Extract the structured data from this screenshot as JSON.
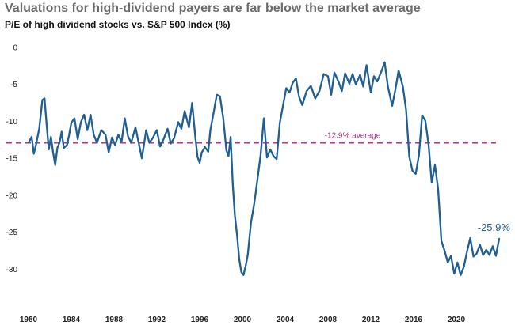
{
  "colors": {
    "line": "#1f5f93",
    "average": "#b03585",
    "last_label": "#1f5f93"
  },
  "chart_data": {
    "type": "line",
    "title": "Valuations for high-dividend payers are far below the market average",
    "subtitle": "P/E of high dividend stocks vs. S&P 500 Index (%)",
    "xlabel": "",
    "ylabel": "",
    "xlim": [
      1980,
      2024.3
    ],
    "ylim": [
      -33.5,
      0
    ],
    "grid": false,
    "legend": "none",
    "x_ticks": [
      1980,
      1984,
      1988,
      1992,
      1996,
      2000,
      2004,
      2008,
      2012,
      2016,
      2020
    ],
    "y_ticks": [
      0,
      -5,
      -10,
      -15,
      -20,
      -25,
      -30
    ],
    "average": {
      "value": -12.9,
      "label": "-12.9% average"
    },
    "last_value_label": "-25.9%",
    "series": [
      {
        "x": [
          1980.0,
          1980.3,
          1980.5,
          1980.7,
          1981.0,
          1981.3,
          1981.5,
          1981.7,
          1981.9,
          1982.1,
          1982.3,
          1982.5,
          1982.7,
          1982.9,
          1983.1,
          1983.3,
          1983.6,
          1983.8,
          1984.0,
          1984.3,
          1984.6,
          1984.9,
          1985.2,
          1985.5,
          1985.8,
          1986.1,
          1986.4,
          1986.8,
          1987.2,
          1987.5,
          1987.8,
          1988.1,
          1988.4,
          1988.7,
          1989.0,
          1989.3,
          1989.6,
          1990.0,
          1990.3,
          1990.6,
          1991.0,
          1991.3,
          1991.6,
          1992.0,
          1992.3,
          1992.6,
          1993.0,
          1993.3,
          1993.6,
          1994.0,
          1994.3,
          1994.6,
          1995.0,
          1995.3,
          1995.6,
          1995.8,
          1996.0,
          1996.2,
          1996.5,
          1996.8,
          1997.0,
          1997.3,
          1997.6,
          1997.9,
          1998.2,
          1998.5,
          1998.7,
          1998.9,
          1999.1,
          1999.3,
          1999.5,
          1999.7,
          1999.9,
          2000.1,
          2000.3,
          2000.5,
          2000.8,
          2001.1,
          2001.4,
          2001.7,
          2002.0,
          2002.3,
          2002.6,
          2002.9,
          2003.2,
          2003.5,
          2003.8,
          2004.1,
          2004.4,
          2004.7,
          2005.0,
          2005.3,
          2005.6,
          2006.0,
          2006.4,
          2006.8,
          2007.2,
          2007.6,
          2008.0,
          2008.3,
          2008.6,
          2009.0,
          2009.3,
          2009.6,
          2010.0,
          2010.3,
          2010.6,
          2011.0,
          2011.3,
          2011.6,
          2012.0,
          2012.3,
          2012.6,
          2013.0,
          2013.3,
          2013.6,
          2014.0,
          2014.3,
          2014.6,
          2015.0,
          2015.3,
          2015.6,
          2015.9,
          2016.2,
          2016.5,
          2016.8,
          2017.1,
          2017.4,
          2017.7,
          2018.0,
          2018.3,
          2018.6,
          2018.9,
          2019.2,
          2019.5,
          2019.8,
          2020.1,
          2020.4,
          2020.7,
          2021.0,
          2021.3,
          2021.6,
          2021.9,
          2022.2,
          2022.5,
          2022.8,
          2023.1,
          2023.4,
          2023.7,
          2024.0
        ],
        "y": [
          -12.9,
          -12.1,
          -14.4,
          -13.2,
          -11.0,
          -7.1,
          -6.9,
          -10.5,
          -13.8,
          -12.1,
          -14.2,
          -15.9,
          -13.6,
          -12.9,
          -11.4,
          -13.6,
          -13.2,
          -11.8,
          -10.2,
          -9.6,
          -12.4,
          -10.1,
          -9.1,
          -11.2,
          -9.1,
          -11.8,
          -12.9,
          -11.2,
          -11.8,
          -14.2,
          -12.2,
          -13.2,
          -11.8,
          -12.8,
          -9.6,
          -12.0,
          -12.9,
          -10.8,
          -12.9,
          -15.0,
          -11.2,
          -12.9,
          -12.3,
          -11.2,
          -13.4,
          -12.5,
          -11.0,
          -13.0,
          -12.3,
          -10.1,
          -11.0,
          -8.6,
          -10.8,
          -7.5,
          -12.2,
          -14.8,
          -15.6,
          -14.2,
          -13.5,
          -14.1,
          -11.2,
          -8.9,
          -6.4,
          -6.6,
          -9.5,
          -13.9,
          -14.7,
          -12.1,
          -18.5,
          -22.8,
          -25.4,
          -28.6,
          -30.4,
          -30.8,
          -29.6,
          -28.1,
          -23.7,
          -21.2,
          -17.9,
          -14.6,
          -9.6,
          -14.9,
          -13.8,
          -14.7,
          -15.1,
          -10.2,
          -7.8,
          -5.5,
          -6.1,
          -4.8,
          -4.2,
          -6.7,
          -7.8,
          -5.9,
          -5.2,
          -6.9,
          -5.9,
          -3.6,
          -3.9,
          -6.4,
          -3.4,
          -4.7,
          -5.9,
          -3.5,
          -4.9,
          -3.6,
          -5.0,
          -3.7,
          -5.3,
          -2.4,
          -6.1,
          -3.9,
          -4.6,
          -3.2,
          -2.0,
          -5.3,
          -7.9,
          -5.7,
          -3.1,
          -5.3,
          -8.4,
          -14.8,
          -16.7,
          -17.1,
          -14.6,
          -9.2,
          -9.9,
          -13.1,
          -18.3,
          -15.9,
          -19.2,
          -26.2,
          -27.5,
          -29.1,
          -28.2,
          -30.6,
          -29.1,
          -30.8,
          -29.7,
          -27.6,
          -25.8,
          -28.3,
          -27.9,
          -26.7,
          -28.1,
          -27.4,
          -28.1,
          -26.9,
          -28.2,
          -25.9
        ]
      }
    ]
  }
}
